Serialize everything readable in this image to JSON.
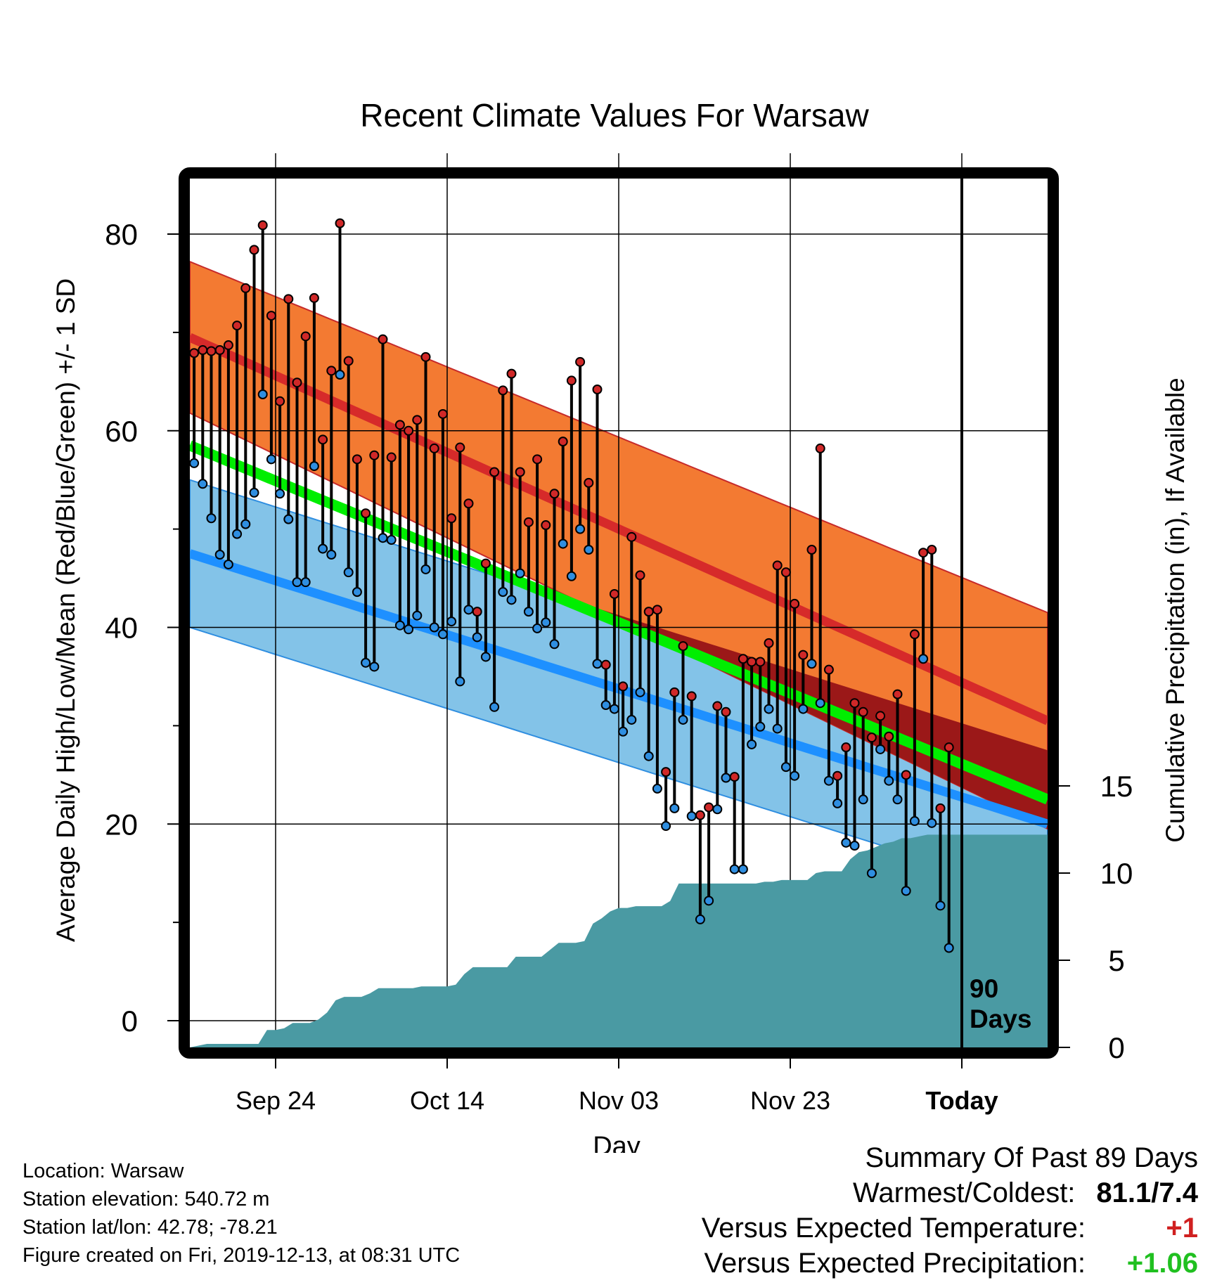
{
  "chart_data": {
    "type": "line",
    "title": "Recent Climate Values For Warsaw",
    "xlabel": "Day",
    "ylabel": "Average Daily High/Low/Mean (Red/Blue/Green) +/- 1 SD",
    "y2label": "Cumulative Precipitation (in), If Available",
    "ylim": [
      -2,
      86
    ],
    "y2lim": [
      0,
      20
    ],
    "yticks": [
      "0",
      "20",
      "40",
      "60",
      "80"
    ],
    "y2ticks": [
      "0",
      "5",
      "10",
      "15"
    ],
    "xticks": [
      "Sep 24",
      "Oct 14",
      "Nov 03",
      "Nov 23",
      "Today"
    ],
    "today_label_line1": "90",
    "today_label_line2": "Days",
    "grid": true,
    "colors": {
      "high_band": "#f37a32",
      "high_mean": "#d62a2a",
      "low_band": "#83c3e8",
      "low_mean": "#1e90ff",
      "mean": "#00ee00",
      "overlap": "#9b1818",
      "precip": "#4a9aa3",
      "high_marker": "#d02828",
      "low_marker": "#2f8ee0"
    },
    "normals": {
      "high_mean": {
        "start": 69.5,
        "end": 30.5
      },
      "high_sd": {
        "start": 7.7,
        "end": 11
      },
      "low_mean": {
        "start": 47.5,
        "end": 20
      },
      "low_sd": {
        "start": 7.5,
        "end": 7.5
      },
      "mean_line": {
        "start": 58.5,
        "end": 22.5
      }
    },
    "series": [
      {
        "name": "High",
        "values": [
          67.9,
          68.2,
          68.1,
          68.2,
          68.7,
          70.7,
          74.5,
          78.4,
          80.9,
          71.7,
          63.0,
          73.4,
          64.9,
          69.6,
          73.5,
          59.1,
          66.1,
          81.1,
          67.1,
          57.1,
          51.6,
          57.5,
          69.3,
          57.3,
          60.6,
          60.0,
          61.1,
          67.5,
          58.2,
          61.7,
          51.1,
          58.3,
          52.6,
          41.6,
          46.5,
          55.8,
          64.1,
          65.8,
          55.8,
          50.7,
          57.1,
          50.4,
          53.6,
          58.9,
          65.1,
          67.0,
          54.7,
          64.2,
          36.2,
          43.4,
          34.0,
          49.2,
          45.3,
          41.6,
          41.8,
          25.3,
          33.4,
          38.1,
          33.0,
          20.9,
          21.7,
          32.0,
          31.4,
          24.8,
          36.8,
          36.5,
          36.5,
          38.4,
          46.3,
          45.6,
          42.4,
          37.2,
          47.9,
          58.2,
          35.7,
          24.9,
          27.8,
          32.3,
          31.4,
          28.8,
          31.0,
          28.9,
          33.2,
          25.0,
          39.3,
          47.6,
          47.9,
          21.6,
          27.8
        ]
      },
      {
        "name": "Low",
        "values": [
          56.7,
          54.6,
          51.1,
          47.4,
          46.4,
          49.5,
          50.5,
          53.7,
          63.7,
          57.1,
          53.6,
          51.0,
          44.6,
          44.6,
          56.4,
          48.0,
          47.4,
          65.7,
          45.6,
          43.6,
          36.4,
          36.0,
          49.1,
          48.9,
          40.2,
          39.8,
          41.2,
          45.9,
          40.0,
          39.3,
          40.6,
          34.5,
          41.8,
          39.0,
          37.0,
          31.9,
          43.6,
          42.8,
          45.5,
          41.6,
          39.9,
          40.5,
          38.3,
          48.5,
          45.2,
          50.0,
          47.9,
          36.3,
          32.1,
          31.7,
          29.4,
          30.6,
          33.4,
          26.9,
          23.6,
          19.8,
          21.6,
          30.6,
          20.8,
          10.3,
          12.2,
          21.5,
          24.7,
          15.4,
          15.4,
          28.1,
          29.9,
          31.7,
          29.7,
          25.8,
          24.9,
          31.7,
          36.3,
          32.3,
          24.4,
          22.1,
          18.1,
          17.8,
          22.5,
          15.0,
          27.6,
          24.4,
          22.5,
          13.2,
          20.3,
          36.8,
          20.1,
          11.7,
          7.4
        ]
      },
      {
        "name": "Precipitation",
        "values": [
          0.0,
          0.1,
          0.2,
          0.2,
          0.2,
          0.2,
          0.2,
          0.2,
          0.2,
          1.0,
          1.0,
          1.1,
          1.4,
          1.4,
          1.4,
          1.6,
          2.0,
          2.7,
          2.9,
          2.9,
          2.9,
          3.1,
          3.4,
          3.4,
          3.4,
          3.4,
          3.4,
          3.5,
          3.5,
          3.5,
          3.5,
          3.6,
          4.2,
          4.6,
          4.6,
          4.6,
          4.6,
          4.6,
          5.2,
          5.2,
          5.2,
          5.2,
          5.6,
          6.0,
          6.0,
          6.0,
          6.1,
          7.1,
          7.4,
          7.8,
          8.0,
          8.0,
          8.1,
          8.1,
          8.1,
          8.1,
          8.4,
          9.4,
          9.4,
          9.4,
          9.4,
          9.4,
          9.4,
          9.4,
          9.4,
          9.4,
          9.4,
          9.5,
          9.5,
          9.6,
          9.6,
          9.6,
          9.6,
          10.0,
          10.1,
          10.1,
          10.1,
          10.8,
          11.2,
          11.3,
          11.5,
          11.7,
          11.8,
          12.0,
          12.0,
          12.1,
          12.2,
          12.2,
          12.2
        ]
      }
    ],
    "tick_unit_day": "Sep 24",
    "today_day": 90,
    "total_days": 100
  },
  "footer": {
    "location": "Location: Warsaw",
    "elevation": "Station elevation: 540.72 m",
    "latlon": "Station lat/lon: 42.78; -78.21",
    "created": "Figure created on Fri, 2019-12-13, at 08:31 UTC"
  },
  "summary": {
    "title": "Summary Of Past 89 Days",
    "warmest_label": "Warmest/Coldest:",
    "warmest_value": "81.1/7.4",
    "temp_label": "Versus Expected Temperature:",
    "temp_value": "+1",
    "precip_label": "Versus Expected Precipitation:",
    "precip_value": "+1.06"
  }
}
